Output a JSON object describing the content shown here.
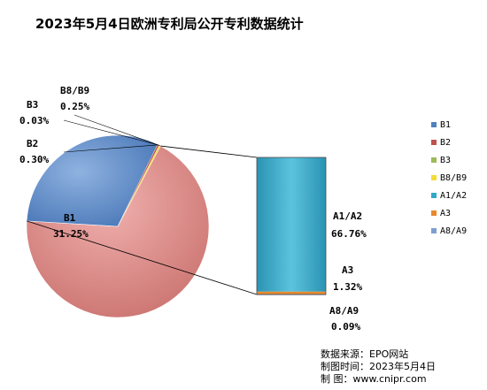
{
  "chart_data": {
    "type": "pie",
    "title": "2023年5月4日欧洲专利局公开专利数据统计",
    "slices": [
      {
        "label": "B1",
        "value": 31.25,
        "text": "31.25%",
        "color": "#4f81bd"
      },
      {
        "label": "B2",
        "value": 0.3,
        "text": "0.30%",
        "color": "#c0504d"
      },
      {
        "label": "B3",
        "value": 0.03,
        "text": "0.03%",
        "color": "#9bbb59"
      },
      {
        "label": "B8/B9",
        "value": 0.25,
        "text": "0.25%",
        "color": "#f2dc3c"
      },
      {
        "label": "A1/A2",
        "value": 66.76,
        "text": "66.76%",
        "color": "#31a9c8"
      },
      {
        "label": "A3",
        "value": 1.32,
        "text": "1.32%",
        "color": "#e8892e"
      },
      {
        "label": "A8/A9",
        "value": 0.09,
        "text": "0.09%",
        "color": "#7f9fd1"
      }
    ],
    "secondary_bar": [
      "A1/A2",
      "A3",
      "A8/A9"
    ],
    "legend": [
      "B1",
      "B2",
      "B3",
      "B8/B9",
      "A1/A2",
      "A3",
      "A8/A9"
    ],
    "legend_position": "right"
  },
  "source": {
    "line1": "数据来源：EPO网站",
    "line2": "制图时间：2023年5月4日",
    "line3": "制    图：www.cnipr.com"
  }
}
